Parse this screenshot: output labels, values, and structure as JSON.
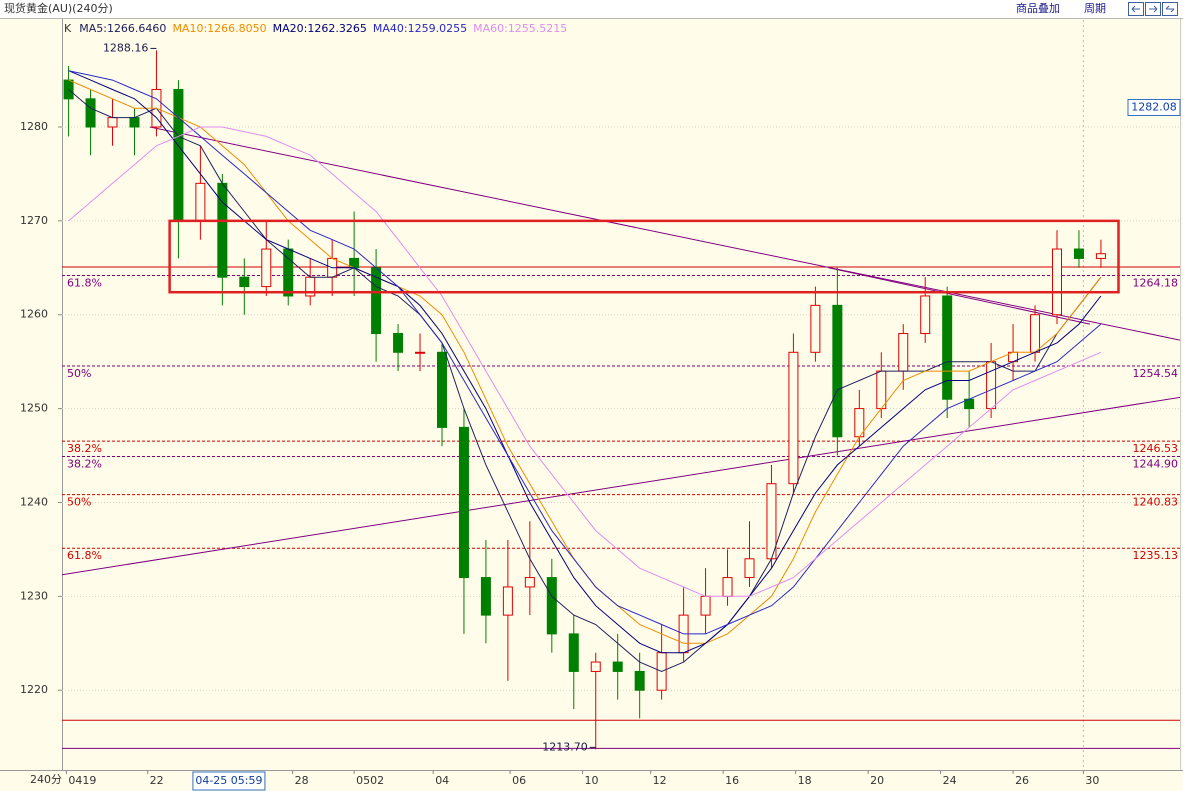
{
  "chart_data": {
    "type": "candlestick",
    "title": "现货黄金(AU)(240分)",
    "buttons": [
      "商品叠加",
      "周期"
    ],
    "period_label": "240分",
    "candle_legend": "K",
    "up_color": "#e00000",
    "down_color": "#008000",
    "ylim": [
      1211.5,
      1291.4
    ],
    "yticks": [
      1220,
      1230,
      1240,
      1250,
      1260,
      1270,
      1280
    ],
    "grid": true,
    "xlim": [
      -0.3,
      50.6
    ],
    "xticks": [
      {
        "value": -0.1,
        "label": "0419"
      },
      {
        "value": 3.6,
        "label": "22"
      },
      {
        "value": 10.2,
        "label": "28"
      },
      {
        "value": 13,
        "label": "0502"
      },
      {
        "value": 16.6,
        "label": "04"
      },
      {
        "value": 20.1,
        "label": "06"
      },
      {
        "value": 23.4,
        "label": "10"
      },
      {
        "value": 26.5,
        "label": "12"
      },
      {
        "value": 29.8,
        "label": "16"
      },
      {
        "value": 33.1,
        "label": "18"
      },
      {
        "value": 36.4,
        "label": "20"
      },
      {
        "value": 39.7,
        "label": "24"
      },
      {
        "value": 43,
        "label": "26"
      },
      {
        "value": 46.2,
        "label": "30"
      }
    ],
    "cursor_time": {
      "value": 7.3,
      "label": "04-25 05:59"
    },
    "cursor_line": 46.2,
    "cursor_price": {
      "value": 1282.08,
      "label": "1282.08"
    },
    "open": [
      1285,
      1283,
      1280,
      1281,
      1280,
      1284,
      1270,
      1274,
      1264,
      1263,
      1267,
      1262,
      1264,
      1266,
      1265,
      1258,
      1256,
      1256,
      1248,
      1232,
      1228,
      1231,
      1232,
      1226,
      1222,
      1223,
      1222,
      1220,
      1224,
      1228,
      1230,
      1232,
      1234,
      1242,
      1256,
      1261,
      1247,
      1250,
      1254,
      1258,
      1262,
      1251,
      1250,
      1255,
      1256,
      1260,
      1267,
      1266
    ],
    "high": [
      1286.5,
      1284,
      1283,
      1282,
      1288.16,
      1285,
      1278,
      1275,
      1266,
      1270,
      1268,
      1266,
      1268,
      1271,
      1267,
      1259,
      1258,
      1257,
      1250,
      1236,
      1236,
      1238,
      1234,
      1228,
      1224,
      1226,
      1224,
      1227,
      1231,
      1233,
      1235,
      1238,
      1244,
      1258,
      1263,
      1265,
      1252,
      1256,
      1259,
      1264,
      1263,
      1254,
      1257,
      1259,
      1261,
      1269,
      1269,
      1268
    ],
    "low": [
      1279,
      1277,
      1278,
      1277,
      1279,
      1266,
      1268,
      1261,
      1260,
      1262,
      1261,
      1261,
      1262,
      1262,
      1255,
      1254,
      1254,
      1246,
      1226,
      1225,
      1221,
      1228,
      1224,
      1218,
      1213.7,
      1219,
      1217,
      1219,
      1223,
      1226,
      1229,
      1231,
      1233,
      1241,
      1255,
      1245,
      1246,
      1249,
      1252,
      1257,
      1249,
      1248,
      1249,
      1253,
      1255,
      1259,
      1265,
      1265
    ],
    "close": [
      1283,
      1280,
      1281,
      1280,
      1284,
      1270,
      1274,
      1264,
      1263,
      1267,
      1262,
      1264,
      1266,
      1265,
      1258,
      1256,
      1256,
      1248,
      1232,
      1228,
      1231,
      1232,
      1226,
      1222,
      1223,
      1222,
      1220,
      1224,
      1228,
      1230,
      1232,
      1234,
      1242,
      1256,
      1261,
      1247,
      1250,
      1254,
      1258,
      1262,
      1251,
      1250,
      1255,
      1256,
      1260,
      1267,
      1266,
      1266.5
    ],
    "extreme_labels": [
      {
        "index": 4,
        "label": "1288.16"
      },
      {
        "index": 24,
        "label": "1213.70"
      }
    ],
    "series": [
      {
        "name": "MA5",
        "legend": "MA5:1266.6460",
        "color": "#202060",
        "values": [
          1284,
          1282,
          1281,
          1281,
          1282,
          1279,
          1278,
          1274,
          1271,
          1268,
          1266,
          1264,
          1264,
          1265,
          1263,
          1262,
          1260,
          1257,
          1250,
          1244,
          1239,
          1234,
          1230,
          1228,
          1227,
          1225,
          1223,
          1222,
          1223,
          1225,
          1227,
          1230,
          1234,
          1241,
          1247,
          1252,
          1253,
          1254,
          1254,
          1254,
          1255,
          1255,
          1255,
          1254,
          1254,
          1258,
          1261,
          1264
        ]
      },
      {
        "name": "MA10",
        "legend": "MA10:1266.8050",
        "color": "#f08c00",
        "values": [
          1285,
          1284,
          1283,
          1282,
          1282,
          1281,
          1280,
          1278,
          1276,
          1273,
          1270,
          1268,
          1266,
          1265,
          1264,
          1263,
          1262,
          1260,
          1256,
          1251,
          1246,
          1242,
          1238,
          1234,
          1231,
          1229,
          1227,
          1226,
          1225,
          1225,
          1226,
          1228,
          1230,
          1234,
          1239,
          1243,
          1247,
          1250,
          1253,
          1254,
          1254,
          1254,
          1255,
          1256,
          1256,
          1258,
          1261,
          1264
        ]
      },
      {
        "name": "MA20",
        "legend": "MA20:1262.3265",
        "color": "#000080",
        "values": [
          1286,
          1285,
          1284,
          1283,
          1281,
          1278,
          1275,
          1272,
          1270,
          1268,
          1267,
          1266,
          1265,
          1265,
          1264,
          1263,
          1261,
          1258,
          1254,
          1250,
          1245,
          1240,
          1236,
          1232,
          1229,
          1227,
          1225,
          1224,
          1224,
          1225,
          1227,
          1230,
          1233,
          1237,
          1241,
          1244,
          1246,
          1248,
          1250,
          1252,
          1253,
          1253,
          1254,
          1255,
          1256,
          1257,
          1259,
          1262
        ]
      },
      {
        "name": "MA40",
        "legend": "MA40:1259.0255",
        "color": "#2828c8",
        "values": [
          1286,
          1285.5,
          1285,
          1284,
          1283,
          1281,
          1279,
          1277,
          1275,
          1273,
          1271,
          1269,
          1268,
          1267,
          1265,
          1263,
          1260,
          1257,
          1253,
          1249,
          1245,
          1241,
          1237,
          1234,
          1231,
          1229,
          1228,
          1227,
          1226,
          1226,
          1227,
          1228,
          1229,
          1231,
          1234,
          1237,
          1240,
          1243,
          1246,
          1248,
          1250,
          1251,
          1252,
          1253,
          1254,
          1255,
          1257,
          1259
        ]
      },
      {
        "name": "MA60",
        "legend": "MA60:1255.5215",
        "color": "#e08cf0",
        "values": [
          1270,
          1272,
          1274,
          1276,
          1278,
          1279,
          1280,
          1280,
          1279.5,
          1279,
          1278,
          1277,
          1275,
          1273,
          1271,
          1268,
          1265,
          1262,
          1258,
          1254,
          1250,
          1246,
          1243,
          1240,
          1237,
          1235,
          1233,
          1232,
          1231,
          1230,
          1230,
          1230,
          1231,
          1232,
          1234,
          1236,
          1238,
          1240,
          1242,
          1244,
          1246,
          1248,
          1250,
          1252,
          1253,
          1254,
          1255,
          1256
        ]
      }
    ],
    "levels": [
      {
        "label": "61.8%",
        "value": 1264.18,
        "value_label": "1264.18",
        "color": "#800080"
      },
      {
        "label": "50%",
        "value": 1254.54,
        "value_label": "1254.54",
        "color": "#800080"
      },
      {
        "label": "38.2%",
        "value": 1246.53,
        "value_label": "1246.53",
        "color": "#d00000"
      },
      {
        "label": "38.2%",
        "value": 1244.9,
        "value_label": "1244.90",
        "color": "#800080"
      },
      {
        "label": "50%",
        "value": 1240.83,
        "value_label": "1240.83",
        "color": "#d00000"
      },
      {
        "label": "61.8%",
        "value": 1235.13,
        "value_label": "1235.13",
        "color": "#d00000"
      }
    ],
    "hlines": [
      {
        "value": 1265.08,
        "color": "#d00000"
      },
      {
        "value": 1216.8,
        "color": "#d00000"
      },
      {
        "value": 1213.8,
        "color": "#800080"
      }
    ],
    "trendlines": [
      {
        "color": "#800080",
        "points": [
          [
            3.7,
            1280
          ],
          [
            50.6,
            1257.3
          ]
        ]
      },
      {
        "color": "#800080",
        "points": [
          [
            -0.3,
            1232.3
          ],
          [
            50.6,
            1251.2
          ]
        ]
      },
      {
        "color": "#800080",
        "points": [
          [
            34.6,
            1265
          ],
          [
            46.5,
            1259
          ]
        ]
      }
    ],
    "box": {
      "color": "#e02020",
      "x": [
        4.6,
        47.8
      ],
      "y": [
        1270,
        1262.4
      ]
    }
  }
}
